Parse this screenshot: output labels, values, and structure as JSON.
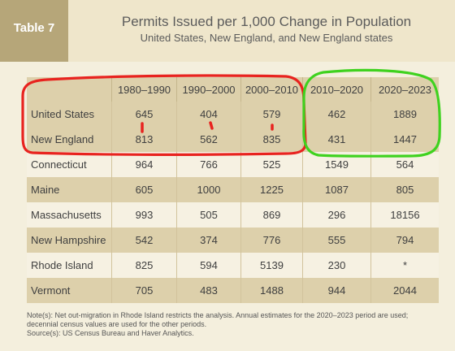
{
  "badge": "Table 7",
  "title": "Permits Issued per 1,000 Change in Population",
  "subtitle": "United States, New England, and New England states",
  "table": {
    "columns": [
      "1980–1990",
      "1990–2000",
      "2000–2010",
      "2010–2020",
      "2020–2023"
    ],
    "rows": [
      {
        "label": "United States",
        "values": [
          "645",
          "404",
          "579",
          "462",
          "1889"
        ]
      },
      {
        "label": "New England",
        "values": [
          "813",
          "562",
          "835",
          "431",
          "1447"
        ]
      },
      {
        "label": "Connecticut",
        "values": [
          "964",
          "766",
          "525",
          "1549",
          "564"
        ]
      },
      {
        "label": "Maine",
        "values": [
          "605",
          "1000",
          "1225",
          "1087",
          "805"
        ]
      },
      {
        "label": "Massachusetts",
        "values": [
          "993",
          "505",
          "869",
          "296",
          "18156"
        ]
      },
      {
        "label": "New Hampshire",
        "values": [
          "542",
          "374",
          "776",
          "555",
          "794"
        ]
      },
      {
        "label": "Rhode Island",
        "values": [
          "825",
          "594",
          "5139",
          "230",
          "*"
        ]
      },
      {
        "label": "Vermont",
        "values": [
          "705",
          "483",
          "1488",
          "944",
          "2044"
        ]
      }
    ]
  },
  "notes": [
    "Note(s): Net out-migration in Rhode Island restricts the analysis. Annual estimates for the 2020–2023 period are used;",
    "decennial census values are used for the other periods.",
    "Source(s): US Census Bureau and Haver Analytics."
  ],
  "colors": {
    "header_bg": "#efe6cb",
    "badge_bg": "#b6a679",
    "table_header_bg": "#ddd0ab",
    "row_dark": "#ddd0ab",
    "row_light": "#f6f1e2",
    "annotation_red": "#e8231f",
    "annotation_green": "#3fd21f"
  }
}
